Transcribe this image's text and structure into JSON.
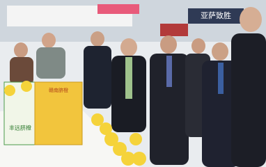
{
  "signs": {
    "booth_banner": "亚萨致胜",
    "left_banner": "丰远脐橙",
    "box_label": "赣南脐橙"
  }
}
